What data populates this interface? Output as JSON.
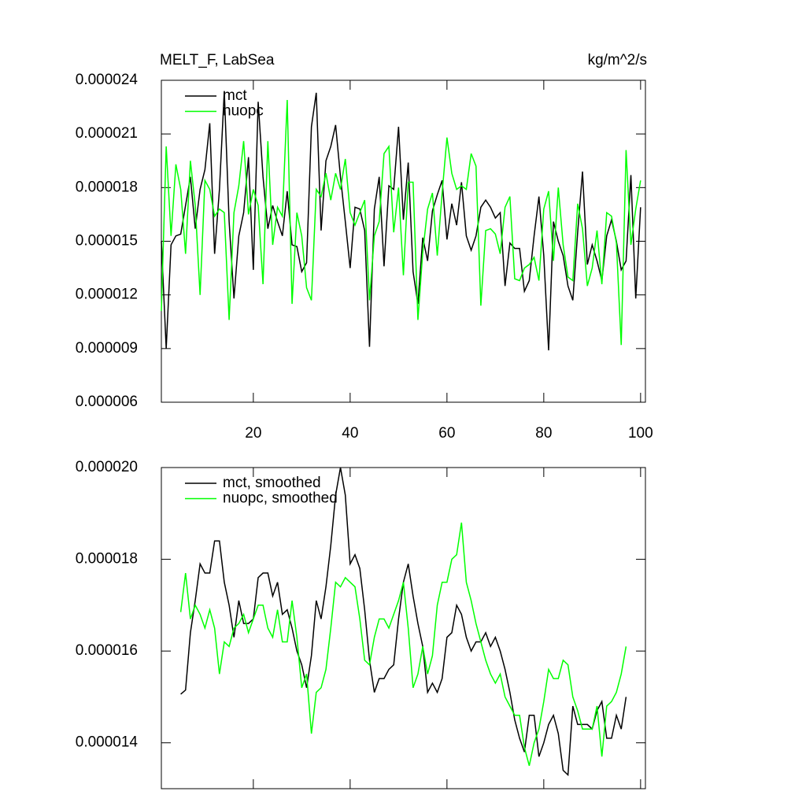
{
  "chart_data": [
    {
      "type": "line",
      "title": "MELT_F, LabSea",
      "units": "kg/m^2/s",
      "x": [
        1,
        2,
        3,
        4,
        5,
        6,
        7,
        8,
        9,
        10,
        11,
        12,
        13,
        14,
        15,
        16,
        17,
        18,
        19,
        20,
        21,
        22,
        23,
        24,
        25,
        26,
        27,
        28,
        29,
        30,
        31,
        32,
        33,
        34,
        35,
        36,
        37,
        38,
        39,
        40,
        41,
        42,
        43,
        44,
        45,
        46,
        47,
        48,
        49,
        50,
        51,
        52,
        53,
        54,
        55,
        56,
        57,
        58,
        59,
        60,
        61,
        62,
        63,
        64,
        65,
        66,
        67,
        68,
        69,
        70,
        71,
        72,
        73,
        74,
        75,
        76,
        77,
        78,
        79,
        80,
        81,
        82,
        83,
        84,
        85,
        86,
        87,
        88,
        89,
        90,
        91,
        92,
        93,
        94,
        95,
        96,
        97,
        98,
        99,
        100
      ],
      "series": [
        {
          "name": "mct",
          "color": "#000000",
          "values": [
            1.5e-05,
            9e-06,
            1.48e-05,
            1.53e-05,
            1.54e-05,
            1.7e-05,
            1.86e-05,
            1.57e-05,
            1.79e-05,
            1.9e-05,
            2.16e-05,
            1.43e-05,
            1.79e-05,
            2.34e-05,
            1.61e-05,
            1.18e-05,
            1.53e-05,
            1.66e-05,
            1.97e-05,
            1.34e-05,
            2.28e-05,
            1.86e-05,
            1.57e-05,
            1.7e-05,
            1.61e-05,
            1.53e-05,
            1.78e-05,
            1.48e-05,
            1.47e-05,
            1.33e-05,
            1.38e-05,
            2.14e-05,
            2.33e-05,
            1.56e-05,
            1.95e-05,
            2.03e-05,
            2.15e-05,
            1.86e-05,
            1.61e-05,
            1.35e-05,
            1.69e-05,
            1.68e-05,
            1.56e-05,
            9.1e-06,
            1.68e-05,
            1.86e-05,
            1.36e-05,
            1.81e-05,
            1.79e-05,
            2.14e-05,
            1.62e-05,
            1.94e-05,
            1.33e-05,
            1.15e-05,
            1.52e-05,
            1.39e-05,
            1.67e-05,
            1.76e-05,
            1.84e-05,
            1.51e-05,
            1.71e-05,
            1.59e-05,
            1.83e-05,
            1.53e-05,
            1.45e-05,
            1.53e-05,
            1.69e-05,
            1.73e-05,
            1.69e-05,
            1.63e-05,
            1.66e-05,
            1.25e-05,
            1.49e-05,
            1.46e-05,
            1.46e-05,
            1.22e-05,
            1.28e-05,
            1.53e-05,
            1.75e-05,
            1.42e-05,
            8.9e-06,
            1.61e-05,
            1.5e-05,
            1.42e-05,
            1.25e-05,
            1.17e-05,
            1.55e-05,
            1.89e-05,
            1.37e-05,
            1.48e-05,
            1.39e-05,
            1.28e-05,
            1.53e-05,
            1.62e-05,
            1.5e-05,
            1.34e-05,
            1.39e-05,
            1.87e-05,
            1.18e-05,
            1.69e-05
          ]
        },
        {
          "name": "nuopc",
          "color": "#00ff00",
          "values": [
            1.11e-05,
            2.03e-05,
            1.53e-05,
            1.93e-05,
            1.79e-05,
            1.43e-05,
            1.95e-05,
            1.7e-05,
            1.2e-05,
            1.84e-05,
            1.79e-05,
            1.64e-05,
            1.68e-05,
            1.66e-05,
            1.06e-05,
            1.66e-05,
            1.81e-05,
            2.06e-05,
            1.65e-05,
            1.79e-05,
            1.7e-05,
            1.26e-05,
            2.06e-05,
            1.48e-05,
            1.69e-05,
            1.64e-05,
            2.29e-05,
            1.15e-05,
            1.66e-05,
            1.53e-05,
            1.24e-05,
            1.17e-05,
            1.79e-05,
            1.75e-05,
            1.88e-05,
            1.73e-05,
            1.88e-05,
            1.79e-05,
            1.96e-05,
            1.66e-05,
            1.59e-05,
            1.66e-05,
            1.73e-05,
            1.17e-05,
            1.53e-05,
            1.61e-05,
            1.99e-05,
            2.03e-05,
            1.55e-05,
            1.8e-05,
            1.31e-05,
            1.83e-05,
            1.83e-05,
            1.06e-05,
            1.44e-05,
            1.68e-05,
            1.77e-05,
            1.42e-05,
            1.77e-05,
            2.08e-05,
            1.88e-05,
            1.79e-05,
            1.81e-05,
            1.79e-05,
            1.99e-05,
            1.92e-05,
            1.14e-05,
            1.56e-05,
            1.57e-05,
            1.54e-05,
            1.43e-05,
            1.69e-05,
            1.75e-05,
            1.29e-05,
            1.28e-05,
            1.35e-05,
            1.37e-05,
            1.41e-05,
            1.28e-05,
            1.68e-05,
            1.78e-05,
            1.39e-05,
            1.8e-05,
            1.48e-05,
            1.3e-05,
            1.28e-05,
            1.71e-05,
            1.57e-05,
            1.25e-05,
            1.35e-05,
            1.56e-05,
            1.26e-05,
            1.66e-05,
            1.64e-05,
            1.49e-05,
            9.2e-06,
            2.01e-05,
            1.48e-05,
            1.68e-05,
            1.84e-05
          ]
        }
      ],
      "xlim": [
        1,
        101
      ],
      "xticks": [
        20,
        40,
        60,
        80,
        100
      ],
      "xtick_labels": true,
      "ylim": [
        6e-06,
        2.4e-05
      ],
      "yticks": [
        6e-06,
        9e-06,
        1.2e-05,
        1.5e-05,
        1.8e-05,
        2.1e-05,
        2.4e-05
      ],
      "legend": "upper left"
    },
    {
      "type": "line",
      "x": [
        5,
        6,
        7,
        8,
        9,
        10,
        11,
        12,
        13,
        14,
        15,
        16,
        17,
        18,
        19,
        20,
        21,
        22,
        23,
        24,
        25,
        26,
        27,
        28,
        29,
        30,
        31,
        32,
        33,
        34,
        35,
        36,
        37,
        38,
        39,
        40,
        41,
        42,
        43,
        44,
        45,
        46,
        47,
        48,
        49,
        50,
        51,
        52,
        53,
        54,
        55,
        56,
        57,
        58,
        59,
        60,
        61,
        62,
        63,
        64,
        65,
        66,
        67,
        68,
        69,
        70,
        71,
        72,
        73,
        74,
        75,
        76,
        77,
        78,
        79,
        80,
        81,
        82,
        83,
        84,
        85,
        86,
        87,
        88,
        89,
        90,
        91,
        92,
        93,
        94,
        95,
        96,
        97
      ],
      "series": [
        {
          "name": "mct, smoothed",
          "color": "#000000",
          "values": [
            1.506e-05,
            1.515e-05,
            1.64e-05,
            1.71e-05,
            1.79e-05,
            1.77e-05,
            1.77e-05,
            1.84e-05,
            1.84e-05,
            1.75e-05,
            1.7e-05,
            1.63e-05,
            1.71e-05,
            1.66e-05,
            1.66e-05,
            1.67e-05,
            1.76e-05,
            1.77e-05,
            1.77e-05,
            1.72e-05,
            1.75e-05,
            1.68e-05,
            1.69e-05,
            1.65e-05,
            1.6e-05,
            1.57e-05,
            1.52e-05,
            1.59e-05,
            1.71e-05,
            1.67e-05,
            1.74e-05,
            1.83e-05,
            1.94e-05,
            2e-05,
            1.94e-05,
            1.79e-05,
            1.81e-05,
            1.78e-05,
            1.69e-05,
            1.58e-05,
            1.51e-05,
            1.54e-05,
            1.54e-05,
            1.56e-05,
            1.57e-05,
            1.67e-05,
            1.75e-05,
            1.79e-05,
            1.72e-05,
            1.66e-05,
            1.61e-05,
            1.51e-05,
            1.53e-05,
            1.51e-05,
            1.54e-05,
            1.63e-05,
            1.64e-05,
            1.7e-05,
            1.68e-05,
            1.63e-05,
            1.6e-05,
            1.62e-05,
            1.62e-05,
            1.64e-05,
            1.61e-05,
            1.63e-05,
            1.6e-05,
            1.56e-05,
            1.51e-05,
            1.45e-05,
            1.41e-05,
            1.38e-05,
            1.46e-05,
            1.46e-05,
            1.37e-05,
            1.4e-05,
            1.44e-05,
            1.46e-05,
            1.42e-05,
            1.34e-05,
            1.33e-05,
            1.48e-05,
            1.44e-05,
            1.44e-05,
            1.44e-05,
            1.43e-05,
            1.47e-05,
            1.49e-05,
            1.41e-05,
            1.41e-05,
            1.46e-05,
            1.43e-05,
            1.5e-05
          ]
        },
        {
          "name": "nuopc, smoothed",
          "color": "#00ff00",
          "values": [
            1.685e-05,
            1.77e-05,
            1.67e-05,
            1.7e-05,
            1.68e-05,
            1.65e-05,
            1.69e-05,
            1.65e-05,
            1.55e-05,
            1.62e-05,
            1.61e-05,
            1.65e-05,
            1.66e-05,
            1.68e-05,
            1.64e-05,
            1.67e-05,
            1.7e-05,
            1.7e-05,
            1.65e-05,
            1.63e-05,
            1.69e-05,
            1.62e-05,
            1.62e-05,
            1.71e-05,
            1.63e-05,
            1.52e-05,
            1.55e-05,
            1.42e-05,
            1.51e-05,
            1.52e-05,
            1.56e-05,
            1.65e-05,
            1.75e-05,
            1.74e-05,
            1.76e-05,
            1.75e-05,
            1.74e-05,
            1.67e-05,
            1.58e-05,
            1.57e-05,
            1.63e-05,
            1.67e-05,
            1.67e-05,
            1.65e-05,
            1.68e-05,
            1.71e-05,
            1.75e-05,
            1.65e-05,
            1.52e-05,
            1.55e-05,
            1.61e-05,
            1.55e-05,
            1.59e-05,
            1.7e-05,
            1.75e-05,
            1.75e-05,
            1.8e-05,
            1.81e-05,
            1.88e-05,
            1.75e-05,
            1.71e-05,
            1.66e-05,
            1.62e-05,
            1.58e-05,
            1.55e-05,
            1.53e-05,
            1.55e-05,
            1.5e-05,
            1.48e-05,
            1.46e-05,
            1.46e-05,
            1.39e-05,
            1.35e-05,
            1.4e-05,
            1.43e-05,
            1.49e-05,
            1.56e-05,
            1.54e-05,
            1.54e-05,
            1.58e-05,
            1.57e-05,
            1.5e-05,
            1.47e-05,
            1.43e-05,
            1.43e-05,
            1.43e-05,
            1.48e-05,
            1.37e-05,
            1.48e-05,
            1.49e-05,
            1.51e-05,
            1.55e-05,
            1.61e-05
          ]
        }
      ],
      "xlim": [
        1,
        101
      ],
      "xticks": [
        20,
        40,
        60,
        80,
        100
      ],
      "xtick_labels": false,
      "ylim": [
        1.3e-05,
        2e-05
      ],
      "yticks": [
        1.4e-05,
        1.6e-05,
        1.8e-05,
        {
          "value": 2e-05,
          "label": "0.000020"
        }
      ],
      "legend": "upper left"
    }
  ]
}
